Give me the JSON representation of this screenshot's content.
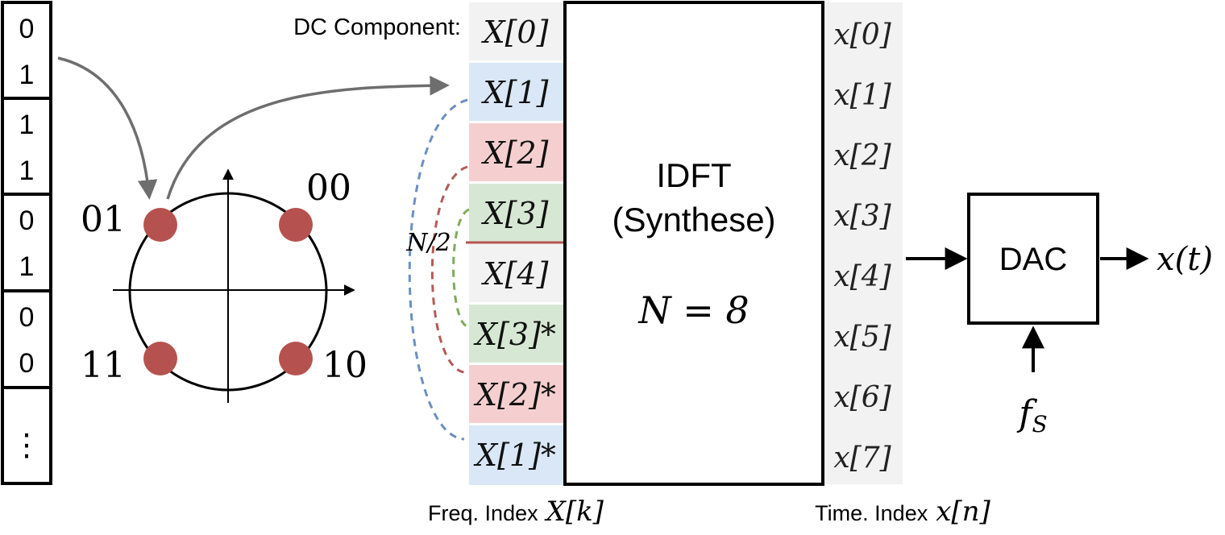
{
  "bit_stream": {
    "cells": [
      {
        "top": "0",
        "bottom": "1"
      },
      {
        "top": "1",
        "bottom": "1"
      },
      {
        "top": "0",
        "bottom": "1"
      },
      {
        "top": "0",
        "bottom": "0"
      }
    ],
    "ellipsis": "⋮"
  },
  "constellation": {
    "points": [
      {
        "label": "00"
      },
      {
        "label": "01"
      },
      {
        "label": "11"
      },
      {
        "label": "10"
      }
    ],
    "point_color": "#b5524f"
  },
  "freq_bins": {
    "dc_label": "DC Component:",
    "split_label": "N/2",
    "axis_caption": "Freq. Index",
    "axis_symbol": "X[k]",
    "bins": [
      {
        "label": "X[0]",
        "fill": "#f2f2f2"
      },
      {
        "label": "X[1]",
        "fill": "#d9e7f6"
      },
      {
        "label": "X[2]",
        "fill": "#f5cfcf"
      },
      {
        "label": "X[3]",
        "fill": "#d6e8d3"
      },
      {
        "label": "X[4]",
        "fill": "#f2f2f2"
      },
      {
        "label": "X[3]*",
        "fill": "#d6e8d3"
      },
      {
        "label": "X[2]*",
        "fill": "#f5cfcf"
      },
      {
        "label": "X[1]*",
        "fill": "#d9e7f6"
      }
    ],
    "pair_colors": [
      "#6b8fc4",
      "#b55a57",
      "#7faa5c"
    ],
    "split_line_color": "#b5524f"
  },
  "idft_block": {
    "title": "IDFT",
    "subtitle": "(Synthese)",
    "param": "N = 8"
  },
  "time_samples": {
    "labels": [
      "x[0]",
      "x[1]",
      "x[2]",
      "x[3]",
      "x[4]",
      "x[5]",
      "x[6]",
      "x[7]"
    ],
    "axis_caption": "Time. Index",
    "axis_symbol": "x[n]",
    "fill": "#f2f2f2"
  },
  "dac": {
    "label": "DAC",
    "clock": "f",
    "clock_sub": "S",
    "output": "x(t)"
  }
}
